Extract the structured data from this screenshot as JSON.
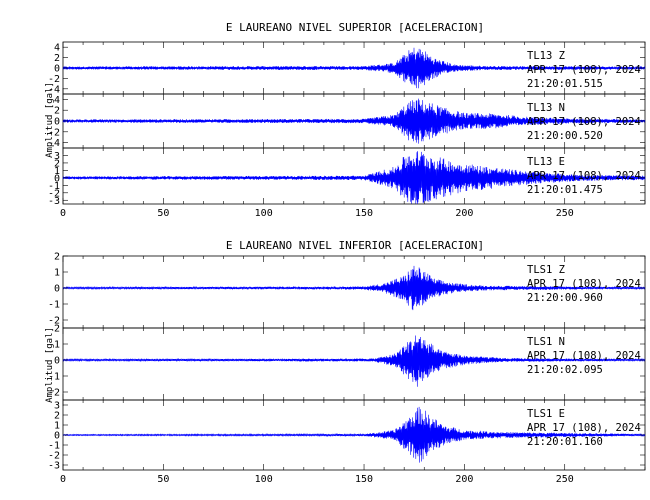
{
  "chart_data": [
    {
      "type": "line",
      "title": "E LAUREANO NIVEL SUPERIOR [ACELERACION]",
      "ylabel": "Amplitud [gal]",
      "xlim": [
        0,
        290
      ],
      "x_ticks": [
        0,
        50,
        100,
        150,
        200,
        250
      ],
      "series": [
        {
          "name": "TL13 Z",
          "station": "TL13",
          "component": "Z",
          "date": "APR 17 (108), 2024",
          "time": "21:20:01.515",
          "ylim": [
            -5,
            5
          ],
          "y_ticks": [
            4,
            2,
            0,
            -2,
            -4
          ],
          "envelope": [
            [
              0,
              0.3
            ],
            [
              150,
              0.4
            ],
            [
              165,
              1.0
            ],
            [
              172,
              3.4
            ],
            [
              176,
              4.4
            ],
            [
              180,
              3.5
            ],
            [
              185,
              2.0
            ],
            [
              195,
              0.7
            ],
            [
              210,
              0.4
            ],
            [
              290,
              0.3
            ]
          ]
        },
        {
          "name": "TL13 N",
          "station": "TL13",
          "component": "N",
          "date": "APR 17 (108), 2024",
          "time": "21:20:00.520",
          "ylim": [
            -5,
            5
          ],
          "y_ticks": [
            4,
            2,
            0,
            -2,
            -4
          ],
          "envelope": [
            [
              0,
              0.3
            ],
            [
              150,
              0.4
            ],
            [
              165,
              1.2
            ],
            [
              172,
              3.6
            ],
            [
              177,
              4.3
            ],
            [
              182,
              3.6
            ],
            [
              190,
              2.5
            ],
            [
              200,
              1.5
            ],
            [
              215,
              1.4
            ],
            [
              230,
              0.8
            ],
            [
              250,
              0.5
            ],
            [
              290,
              0.3
            ]
          ]
        },
        {
          "name": "TL13 E",
          "station": "TL13",
          "component": "E",
          "date": "APR 17 (108), 2024",
          "time": "21:20:01.475",
          "ylim": [
            -3.5,
            4
          ],
          "y_ticks": [
            3,
            2,
            1,
            0,
            -1,
            -2,
            -3
          ],
          "envelope": [
            [
              0,
              0.2
            ],
            [
              150,
              0.3
            ],
            [
              165,
              1.5
            ],
            [
              172,
              3.5
            ],
            [
              178,
              3.8
            ],
            [
              185,
              3.0
            ],
            [
              195,
              2.2
            ],
            [
              210,
              1.6
            ],
            [
              225,
              1.1
            ],
            [
              240,
              0.7
            ],
            [
              260,
              0.4
            ],
            [
              290,
              0.3
            ]
          ]
        }
      ]
    },
    {
      "type": "line",
      "title": "E LAUREANO NIVEL INFERIOR [ACELERACION]",
      "ylabel": "Amplitud [gal]",
      "xlim": [
        0,
        290
      ],
      "x_ticks": [
        0,
        50,
        100,
        150,
        200,
        250
      ],
      "series": [
        {
          "name": "TLS1 Z",
          "station": "TLS1",
          "component": "Z",
          "date": "APR 17 (108), 2024",
          "time": "21:20:00.960",
          "ylim": [
            -2.5,
            2
          ],
          "y_ticks": [
            2,
            1,
            0,
            -1,
            -2
          ],
          "envelope": [
            [
              0,
              0.05
            ],
            [
              150,
              0.1
            ],
            [
              160,
              0.3
            ],
            [
              170,
              0.8
            ],
            [
              175,
              1.5
            ],
            [
              180,
              1.1
            ],
            [
              185,
              0.6
            ],
            [
              195,
              0.3
            ],
            [
              210,
              0.15
            ],
            [
              290,
              0.05
            ]
          ]
        },
        {
          "name": "TLS1 N",
          "station": "TLS1",
          "component": "N",
          "date": "APR 17 (108), 2024",
          "time": "21:20:02.095",
          "ylim": [
            -2.5,
            2
          ],
          "y_ticks": [
            2,
            1,
            0,
            -1,
            -2
          ],
          "envelope": [
            [
              0,
              0.05
            ],
            [
              155,
              0.1
            ],
            [
              165,
              0.4
            ],
            [
              172,
              1.2
            ],
            [
              177,
              1.8
            ],
            [
              182,
              1.2
            ],
            [
              188,
              0.6
            ],
            [
              200,
              0.3
            ],
            [
              220,
              0.12
            ],
            [
              290,
              0.05
            ]
          ]
        },
        {
          "name": "TLS1 E",
          "station": "TLS1",
          "component": "E",
          "date": "APR 17 (108), 2024",
          "time": "21:20:01.160",
          "ylim": [
            -3.5,
            3.5
          ],
          "y_ticks": [
            3,
            2,
            1,
            0,
            -1,
            -2,
            -3
          ],
          "envelope": [
            [
              0,
              0.05
            ],
            [
              150,
              0.1
            ],
            [
              165,
              0.5
            ],
            [
              172,
              1.8
            ],
            [
              178,
              3.0
            ],
            [
              183,
              2.0
            ],
            [
              190,
              1.0
            ],
            [
              200,
              0.5
            ],
            [
              220,
              0.3
            ],
            [
              290,
              0.1
            ]
          ]
        }
      ]
    }
  ]
}
